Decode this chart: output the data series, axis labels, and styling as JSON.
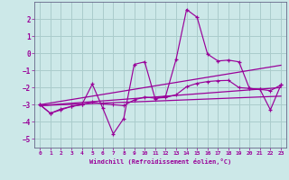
{
  "xlabel": "Windchill (Refroidissement éolien,°C)",
  "bg_color": "#cce8e8",
  "grid_color": "#aacccc",
  "line_color": "#990099",
  "spine_color": "#666688",
  "xlim": [
    -0.5,
    23.5
  ],
  "ylim": [
    -5.5,
    3.0
  ],
  "yticks": [
    -5,
    -4,
    -3,
    -2,
    -1,
    0,
    1,
    2
  ],
  "xticks": [
    0,
    1,
    2,
    3,
    4,
    5,
    6,
    7,
    8,
    9,
    10,
    11,
    12,
    13,
    14,
    15,
    16,
    17,
    18,
    19,
    20,
    21,
    22,
    23
  ],
  "series1_x": [
    0,
    1,
    2,
    3,
    4,
    5,
    6,
    7,
    8,
    9,
    10,
    11,
    12,
    13,
    14,
    15,
    16,
    17,
    18,
    19,
    20,
    21,
    22,
    23
  ],
  "series1_y": [
    -3.0,
    -3.5,
    -3.3,
    -3.1,
    -3.0,
    -1.8,
    -3.2,
    -4.7,
    -3.8,
    -0.65,
    -0.5,
    -2.65,
    -2.5,
    -0.35,
    2.55,
    2.1,
    -0.05,
    -0.45,
    -0.4,
    -0.5,
    -2.05,
    -2.1,
    -3.3,
    -1.85
  ],
  "series2_x": [
    0,
    1,
    2,
    3,
    4,
    5,
    6,
    7,
    8,
    9,
    10,
    11,
    12,
    13,
    14,
    15,
    16,
    17,
    18,
    19,
    20,
    21,
    22,
    23
  ],
  "series2_y": [
    -3.0,
    -3.5,
    -3.25,
    -3.1,
    -3.0,
    -2.85,
    -2.95,
    -3.0,
    -3.05,
    -2.72,
    -2.55,
    -2.62,
    -2.58,
    -2.42,
    -1.95,
    -1.75,
    -1.65,
    -1.6,
    -1.58,
    -2.0,
    -2.05,
    -2.1,
    -2.18,
    -1.85
  ],
  "series3_x": [
    0,
    23
  ],
  "series3_y": [
    -3.0,
    -0.7
  ],
  "series4_x": [
    0,
    23
  ],
  "series4_y": [
    -3.05,
    -2.0
  ],
  "series5_x": [
    0,
    23
  ],
  "series5_y": [
    -3.05,
    -2.5
  ]
}
